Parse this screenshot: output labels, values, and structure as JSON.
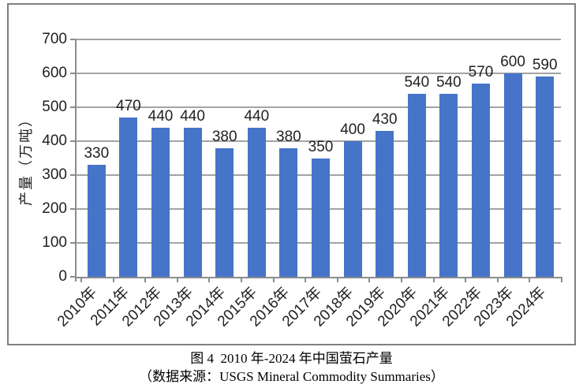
{
  "figure": {
    "caption_title": "图 4  2010 年-2024 年中国萤石产量",
    "caption_source": "（数据来源：USGS Mineral Commodity Summaries）"
  },
  "chart_data": {
    "type": "bar",
    "title": "图 4  2010 年-2024 年中国萤石产量",
    "source": "（数据来源：USGS Mineral Commodity Summaries）",
    "categories": [
      "2010年",
      "2011年",
      "2012年",
      "2013年",
      "2014年",
      "2015年",
      "2016年",
      "2017年",
      "2018年",
      "2019年",
      "2020年",
      "2021年",
      "2022年",
      "2023年",
      "2024年"
    ],
    "values": [
      330,
      470,
      440,
      440,
      380,
      440,
      380,
      350,
      400,
      430,
      540,
      540,
      570,
      600,
      590
    ],
    "xlabel": "",
    "ylabel": "产量（万吨）",
    "ylim": [
      0,
      700
    ],
    "yticks": [
      0,
      100,
      200,
      300,
      400,
      500,
      600,
      700
    ],
    "grid": true,
    "legend": "none",
    "data_labels": true,
    "bar_color": "#4674C8",
    "gridline_color": "#A3A3A3",
    "axis_color": "#8C8C8C",
    "label_color": "#1F1F1F",
    "frame_border_color": "#808080"
  }
}
